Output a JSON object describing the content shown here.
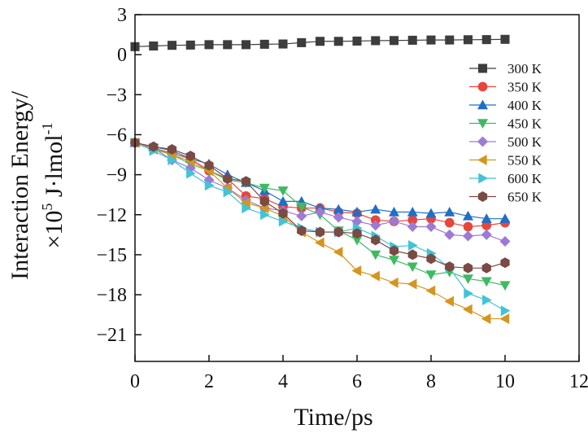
{
  "chart_data": {
    "type": "line",
    "title": "",
    "xlabel": "Time/ps",
    "ylabel_line1": "Interaction Energy/",
    "ylabel_line2_prefix": "×10",
    "ylabel_line2_exp": "5",
    "ylabel_line2_unit": " J·lmol",
    "ylabel_line2_unit_exp": "-1",
    "xlim": [
      0,
      12
    ],
    "ylim": [
      -23,
      3
    ],
    "xticks": [
      0,
      2,
      4,
      6,
      8,
      10,
      12
    ],
    "yticks": [
      3,
      0,
      -3,
      -6,
      -9,
      -12,
      -15,
      -18,
      -21
    ],
    "ytick_labels": [
      "3",
      "0",
      "−3",
      "−6",
      "−9",
      "−12",
      "−15",
      "−18",
      "−21"
    ],
    "legend_position": "right",
    "x": [
      0,
      0.5,
      1,
      1.5,
      2,
      2.5,
      3,
      3.5,
      4,
      4.5,
      5,
      5.5,
      6,
      6.5,
      7,
      7.5,
      8,
      8.5,
      9,
      9.5,
      10
    ],
    "series": [
      {
        "name": "300 K",
        "color": "#3d3d3d",
        "marker": "square",
        "values": [
          0.6,
          0.65,
          0.7,
          0.72,
          0.75,
          0.75,
          0.75,
          0.78,
          0.8,
          0.9,
          1.0,
          1.0,
          1.02,
          1.05,
          1.06,
          1.08,
          1.1,
          1.1,
          1.12,
          1.13,
          1.15
        ]
      },
      {
        "name": "350 K",
        "color": "#e8453c",
        "marker": "circle",
        "values": [
          -6.6,
          -7.0,
          -7.4,
          -7.8,
          -8.7,
          -9.3,
          -10.6,
          -10.8,
          -11.4,
          -11.5,
          -11.5,
          -11.8,
          -11.9,
          -12.4,
          -12.5,
          -12.4,
          -12.3,
          -12.6,
          -12.9,
          -12.8,
          -12.6
        ]
      },
      {
        "name": "400 K",
        "color": "#1f6fc5",
        "marker": "triangle-up",
        "values": [
          -6.6,
          -6.9,
          -7.2,
          -7.8,
          -8.2,
          -9.0,
          -9.6,
          -10.2,
          -11.0,
          -11.0,
          -11.5,
          -11.6,
          -11.8,
          -11.6,
          -11.8,
          -11.8,
          -11.9,
          -11.8,
          -12.1,
          -12.3,
          -12.3
        ]
      },
      {
        "name": "450 K",
        "color": "#3dba62",
        "marker": "triangle-down",
        "values": [
          -6.6,
          -7.0,
          -7.5,
          -8.2,
          -8.7,
          -9.4,
          -9.6,
          -10.0,
          -10.2,
          -11.4,
          -12.0,
          -13.2,
          -13.9,
          -15.0,
          -15.4,
          -15.9,
          -16.5,
          -16.3,
          -16.8,
          -17.0,
          -17.3
        ]
      },
      {
        "name": "500 K",
        "color": "#9b7bd4",
        "marker": "diamond",
        "values": [
          -6.6,
          -7.0,
          -7.9,
          -8.5,
          -9.4,
          -10.0,
          -10.9,
          -11.5,
          -11.7,
          -12.1,
          -11.8,
          -12.2,
          -12.5,
          -12.8,
          -12.5,
          -12.9,
          -12.9,
          -13.5,
          -13.6,
          -13.5,
          -14.0
        ]
      },
      {
        "name": "550 K",
        "color": "#d4961e",
        "marker": "triangle-left",
        "values": [
          -6.6,
          -7.1,
          -7.5,
          -8.0,
          -8.7,
          -10.0,
          -11.1,
          -11.5,
          -12.1,
          -13.3,
          -14.1,
          -14.8,
          -16.2,
          -16.6,
          -17.1,
          -17.2,
          -17.7,
          -18.5,
          -19.1,
          -19.8,
          -19.8
        ]
      },
      {
        "name": "600 K",
        "color": "#3fc4d8",
        "marker": "triangle-right",
        "values": [
          -6.6,
          -7.2,
          -7.9,
          -8.9,
          -9.8,
          -10.3,
          -11.5,
          -12.0,
          -12.5,
          -13.0,
          -13.3,
          -13.3,
          -13.0,
          -13.6,
          -14.4,
          -14.3,
          -14.9,
          -16.0,
          -17.9,
          -18.4,
          -19.2
        ]
      },
      {
        "name": "650 K",
        "color": "#7a4a44",
        "marker": "hexagon",
        "values": [
          -6.6,
          -6.9,
          -7.1,
          -7.6,
          -8.3,
          -9.3,
          -9.5,
          -11.0,
          -11.9,
          -13.2,
          -13.3,
          -13.3,
          -13.4,
          -13.9,
          -14.7,
          -15.0,
          -15.3,
          -15.9,
          -16.0,
          -16.0,
          -15.6
        ]
      }
    ]
  }
}
